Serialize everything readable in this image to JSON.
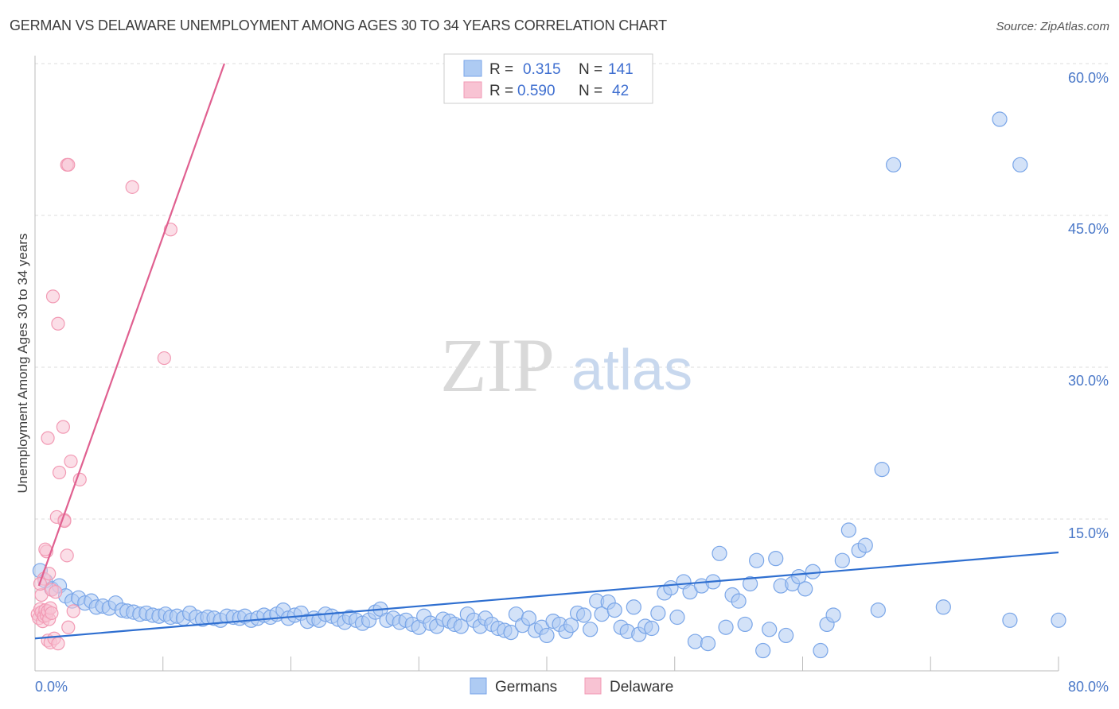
{
  "chart_data": {
    "type": "scatter",
    "title": "GERMAN VS DELAWARE UNEMPLOYMENT AMONG AGES 30 TO 34 YEARS CORRELATION CHART",
    "source": "Source: ZipAtlas.com",
    "xlabel": "",
    "ylabel": "Unemployment Among Ages 30 to 34 years",
    "xlim": [
      0,
      80
    ],
    "ylim": [
      0,
      60
    ],
    "x_tick_labels": [
      "0.0%",
      "80.0%"
    ],
    "y_tick_labels": [
      "15.0%",
      "30.0%",
      "45.0%",
      "60.0%"
    ],
    "y_tick_values": [
      15,
      30,
      45,
      60
    ],
    "watermark": {
      "zip": "ZIP",
      "atlas": "atlas"
    },
    "legend_stats": [
      {
        "r_label": "R =",
        "r_value": "0.315",
        "n_label": "N =",
        "n_value": "141"
      },
      {
        "r_label": "R =",
        "r_value": "0.590",
        "n_label": "N =",
        "n_value": "42"
      }
    ],
    "series": [
      {
        "name": "Germans",
        "color": "#7aa6e8",
        "fill": "#aecbf3",
        "line_color": "#2f6fd0",
        "trend": {
          "x": [
            0,
            80
          ],
          "y": [
            3.2,
            11.7
          ]
        },
        "points": [
          [
            0.4,
            9.9
          ],
          [
            0.8,
            8.9
          ],
          [
            1.3,
            8.1
          ],
          [
            1.9,
            8.4
          ],
          [
            2.4,
            7.4
          ],
          [
            2.9,
            6.9
          ],
          [
            3.4,
            7.2
          ],
          [
            3.9,
            6.7
          ],
          [
            4.4,
            6.9
          ],
          [
            4.8,
            6.3
          ],
          [
            5.3,
            6.4
          ],
          [
            5.8,
            6.2
          ],
          [
            6.3,
            6.7
          ],
          [
            6.8,
            6.0
          ],
          [
            7.2,
            5.9
          ],
          [
            7.7,
            5.8
          ],
          [
            8.2,
            5.6
          ],
          [
            8.7,
            5.7
          ],
          [
            9.2,
            5.5
          ],
          [
            9.7,
            5.4
          ],
          [
            10.2,
            5.6
          ],
          [
            10.6,
            5.3
          ],
          [
            11.1,
            5.4
          ],
          [
            11.6,
            5.2
          ],
          [
            12.1,
            5.7
          ],
          [
            12.6,
            5.3
          ],
          [
            13.1,
            5.1
          ],
          [
            13.5,
            5.3
          ],
          [
            14.0,
            5.2
          ],
          [
            14.5,
            5.0
          ],
          [
            15.0,
            5.4
          ],
          [
            15.5,
            5.3
          ],
          [
            16.0,
            5.2
          ],
          [
            16.4,
            5.4
          ],
          [
            16.9,
            5.0
          ],
          [
            17.4,
            5.2
          ],
          [
            17.9,
            5.5
          ],
          [
            18.4,
            5.3
          ],
          [
            18.9,
            5.6
          ],
          [
            19.4,
            6.0
          ],
          [
            19.8,
            5.2
          ],
          [
            20.3,
            5.5
          ],
          [
            20.8,
            5.7
          ],
          [
            21.3,
            4.9
          ],
          [
            21.8,
            5.2
          ],
          [
            22.2,
            5.0
          ],
          [
            22.7,
            5.6
          ],
          [
            23.2,
            5.4
          ],
          [
            23.7,
            5.1
          ],
          [
            24.2,
            4.8
          ],
          [
            24.6,
            5.3
          ],
          [
            25.1,
            5.0
          ],
          [
            25.6,
            4.7
          ],
          [
            26.1,
            5.0
          ],
          [
            26.6,
            5.8
          ],
          [
            27.0,
            6.1
          ],
          [
            27.5,
            5.0
          ],
          [
            28.0,
            5.2
          ],
          [
            28.5,
            4.8
          ],
          [
            29.0,
            5.0
          ],
          [
            29.5,
            4.6
          ],
          [
            30.0,
            4.3
          ],
          [
            30.4,
            5.4
          ],
          [
            30.9,
            4.7
          ],
          [
            31.4,
            4.4
          ],
          [
            31.9,
            5.1
          ],
          [
            32.4,
            4.9
          ],
          [
            32.8,
            4.6
          ],
          [
            33.3,
            4.4
          ],
          [
            33.8,
            5.6
          ],
          [
            34.3,
            5.0
          ],
          [
            34.8,
            4.4
          ],
          [
            35.2,
            5.2
          ],
          [
            35.7,
            4.6
          ],
          [
            36.2,
            4.2
          ],
          [
            36.7,
            4.0
          ],
          [
            37.2,
            3.8
          ],
          [
            37.6,
            5.6
          ],
          [
            38.1,
            4.5
          ],
          [
            38.6,
            5.2
          ],
          [
            39.1,
            4.0
          ],
          [
            39.6,
            4.3
          ],
          [
            40.0,
            3.5
          ],
          [
            40.5,
            4.9
          ],
          [
            41.0,
            4.6
          ],
          [
            41.5,
            3.9
          ],
          [
            41.9,
            4.5
          ],
          [
            42.4,
            5.7
          ],
          [
            42.9,
            5.5
          ],
          [
            43.4,
            4.1
          ],
          [
            43.9,
            6.9
          ],
          [
            44.3,
            5.6
          ],
          [
            44.8,
            6.8
          ],
          [
            45.3,
            6.0
          ],
          [
            45.8,
            4.3
          ],
          [
            46.3,
            3.9
          ],
          [
            46.8,
            6.3
          ],
          [
            47.2,
            3.6
          ],
          [
            47.7,
            4.4
          ],
          [
            48.2,
            4.2
          ],
          [
            48.7,
            5.7
          ],
          [
            49.2,
            7.7
          ],
          [
            49.7,
            8.2
          ],
          [
            50.2,
            5.3
          ],
          [
            50.7,
            8.8
          ],
          [
            51.2,
            7.8
          ],
          [
            51.6,
            2.9
          ],
          [
            52.1,
            8.4
          ],
          [
            52.6,
            2.7
          ],
          [
            53.0,
            8.8
          ],
          [
            53.5,
            11.6
          ],
          [
            54.0,
            4.3
          ],
          [
            54.5,
            7.5
          ],
          [
            55.0,
            6.9
          ],
          [
            55.5,
            4.6
          ],
          [
            55.9,
            8.6
          ],
          [
            56.4,
            10.9
          ],
          [
            56.9,
            2.0
          ],
          [
            57.4,
            4.1
          ],
          [
            57.9,
            11.1
          ],
          [
            58.3,
            8.4
          ],
          [
            58.7,
            3.5
          ],
          [
            59.2,
            8.6
          ],
          [
            59.7,
            9.3
          ],
          [
            60.2,
            8.1
          ],
          [
            60.8,
            9.8
          ],
          [
            61.4,
            2.0
          ],
          [
            61.9,
            4.6
          ],
          [
            62.4,
            5.5
          ],
          [
            63.1,
            10.9
          ],
          [
            63.6,
            13.9
          ],
          [
            64.4,
            11.9
          ],
          [
            64.9,
            12.4
          ],
          [
            66.2,
            19.9
          ],
          [
            67.1,
            50.0
          ],
          [
            75.4,
            54.5
          ],
          [
            77.0,
            50.0
          ],
          [
            71.0,
            6.3
          ],
          [
            65.9,
            6.0
          ],
          [
            80.0,
            5.0
          ],
          [
            76.2,
            5.0
          ]
        ]
      },
      {
        "name": "Delaware",
        "color": "#f29ab4",
        "fill": "#f8c3d3",
        "line_color": "#e06090",
        "trend": {
          "x": [
            0.3,
            14.8
          ],
          "y": [
            8.4,
            60.0
          ]
        },
        "points": [
          [
            0.2,
            5.6
          ],
          [
            0.3,
            5.2
          ],
          [
            0.4,
            6.1
          ],
          [
            0.5,
            5.8
          ],
          [
            0.6,
            4.9
          ],
          [
            0.7,
            5.4
          ],
          [
            0.8,
            6.0
          ],
          [
            0.9,
            5.5
          ],
          [
            1.0,
            5.9
          ],
          [
            1.1,
            5.1
          ],
          [
            1.2,
            6.2
          ],
          [
            1.3,
            5.7
          ],
          [
            0.5,
            7.5
          ],
          [
            0.7,
            9.1
          ],
          [
            0.9,
            11.8
          ],
          [
            1.1,
            9.6
          ],
          [
            1.3,
            8.0
          ],
          [
            0.8,
            12.0
          ],
          [
            1.0,
            3.0
          ],
          [
            1.2,
            2.8
          ],
          [
            1.5,
            3.2
          ],
          [
            1.8,
            2.7
          ],
          [
            1.4,
            37.0
          ],
          [
            1.8,
            34.3
          ],
          [
            1.0,
            23.0
          ],
          [
            1.9,
            19.6
          ],
          [
            2.2,
            24.1
          ],
          [
            2.8,
            20.7
          ],
          [
            3.5,
            18.9
          ],
          [
            1.7,
            15.2
          ],
          [
            2.3,
            14.9
          ],
          [
            2.5,
            11.4
          ],
          [
            2.6,
            4.3
          ],
          [
            2.5,
            50.0
          ],
          [
            2.6,
            50.0
          ],
          [
            7.6,
            47.8
          ],
          [
            10.6,
            43.6
          ],
          [
            10.1,
            30.9
          ],
          [
            3.0,
            5.9
          ],
          [
            2.3,
            14.8
          ],
          [
            1.6,
            7.8
          ],
          [
            0.4,
            8.6
          ]
        ]
      }
    ]
  }
}
